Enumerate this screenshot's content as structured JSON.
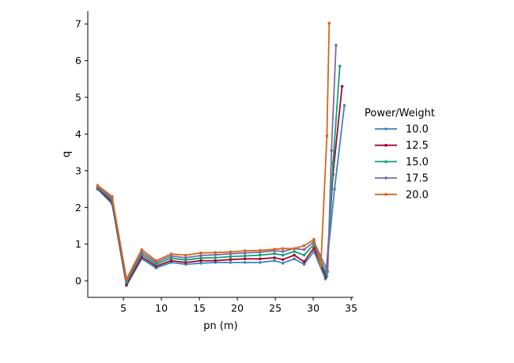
{
  "chart_data": {
    "type": "line",
    "xlabel": "pn (m)",
    "ylabel": "q",
    "xlim": [
      0.3,
      35.3
    ],
    "ylim": [
      -0.45,
      7.35
    ],
    "xticks": [
      5,
      10,
      15,
      20,
      25,
      30,
      35
    ],
    "yticks": [
      0,
      1,
      2,
      3,
      4,
      5,
      6,
      7
    ],
    "grid": false,
    "legend": {
      "title": "Power/Weight",
      "placement": "right"
    },
    "series": [
      {
        "name": "10.0",
        "color": "#3a85c1",
        "points": [
          [
            1.6,
            2.5
          ],
          [
            3.5,
            2.1
          ],
          [
            5.4,
            -0.13
          ],
          [
            7.4,
            0.6
          ],
          [
            9.3,
            0.35
          ],
          [
            11.3,
            0.5
          ],
          [
            13.2,
            0.45
          ],
          [
            15.2,
            0.48
          ],
          [
            17.1,
            0.5
          ],
          [
            19.1,
            0.5
          ],
          [
            21.0,
            0.5
          ],
          [
            23.0,
            0.5
          ],
          [
            24.9,
            0.55
          ],
          [
            26.0,
            0.48
          ],
          [
            27.5,
            0.6
          ],
          [
            28.8,
            0.45
          ],
          [
            30.1,
            0.8
          ],
          [
            31.6,
            0.05
          ],
          [
            32.8,
            2.5
          ],
          [
            34.1,
            4.78
          ]
        ]
      },
      {
        "name": "12.5",
        "color": "#a3072f",
        "points": [
          [
            1.6,
            2.52
          ],
          [
            3.5,
            2.15
          ],
          [
            5.4,
            -0.1
          ],
          [
            7.4,
            0.65
          ],
          [
            9.3,
            0.4
          ],
          [
            11.3,
            0.55
          ],
          [
            13.2,
            0.5
          ],
          [
            15.2,
            0.55
          ],
          [
            17.1,
            0.55
          ],
          [
            19.1,
            0.58
          ],
          [
            21.0,
            0.6
          ],
          [
            23.0,
            0.6
          ],
          [
            24.9,
            0.63
          ],
          [
            26.0,
            0.58
          ],
          [
            27.5,
            0.7
          ],
          [
            28.8,
            0.52
          ],
          [
            30.1,
            0.9
          ],
          [
            31.7,
            0.1
          ],
          [
            32.6,
            2.9
          ],
          [
            33.8,
            5.3
          ]
        ]
      },
      {
        "name": "15.0",
        "color": "#0fa078",
        "points": [
          [
            1.6,
            2.54
          ],
          [
            3.5,
            2.2
          ],
          [
            5.4,
            -0.05
          ],
          [
            7.4,
            0.72
          ],
          [
            9.3,
            0.45
          ],
          [
            11.3,
            0.62
          ],
          [
            13.2,
            0.57
          ],
          [
            15.2,
            0.62
          ],
          [
            17.1,
            0.63
          ],
          [
            19.1,
            0.66
          ],
          [
            21.0,
            0.68
          ],
          [
            23.0,
            0.7
          ],
          [
            24.9,
            0.74
          ],
          [
            26.0,
            0.7
          ],
          [
            27.5,
            0.8
          ],
          [
            28.8,
            0.7
          ],
          [
            30.1,
            1.0
          ],
          [
            31.8,
            0.15
          ],
          [
            32.6,
            3.2
          ],
          [
            33.5,
            5.85
          ]
        ]
      },
      {
        "name": "17.5",
        "color": "#7e68a8",
        "points": [
          [
            1.6,
            2.56
          ],
          [
            3.5,
            2.25
          ],
          [
            5.4,
            0.0
          ],
          [
            7.4,
            0.78
          ],
          [
            9.3,
            0.5
          ],
          [
            11.3,
            0.68
          ],
          [
            13.2,
            0.63
          ],
          [
            15.2,
            0.69
          ],
          [
            17.1,
            0.71
          ],
          [
            19.1,
            0.74
          ],
          [
            21.0,
            0.76
          ],
          [
            23.0,
            0.78
          ],
          [
            24.9,
            0.82
          ],
          [
            26.0,
            0.8
          ],
          [
            27.5,
            0.88
          ],
          [
            28.8,
            0.85
          ],
          [
            30.1,
            1.07
          ],
          [
            31.9,
            0.25
          ],
          [
            32.4,
            3.55
          ],
          [
            33.0,
            6.42
          ]
        ]
      },
      {
        "name": "20.0",
        "color": "#d2691e",
        "points": [
          [
            1.6,
            2.6
          ],
          [
            3.5,
            2.3
          ],
          [
            5.4,
            0.05
          ],
          [
            7.4,
            0.85
          ],
          [
            9.3,
            0.55
          ],
          [
            11.3,
            0.73
          ],
          [
            13.2,
            0.7
          ],
          [
            15.2,
            0.76
          ],
          [
            17.1,
            0.77
          ],
          [
            19.1,
            0.79
          ],
          [
            21.0,
            0.82
          ],
          [
            23.0,
            0.83
          ],
          [
            24.9,
            0.86
          ],
          [
            26.0,
            0.88
          ],
          [
            27.5,
            0.88
          ],
          [
            28.8,
            0.96
          ],
          [
            30.1,
            1.13
          ],
          [
            31.0,
            0.4
          ],
          [
            31.8,
            3.95
          ],
          [
            32.1,
            7.02
          ]
        ]
      }
    ]
  }
}
